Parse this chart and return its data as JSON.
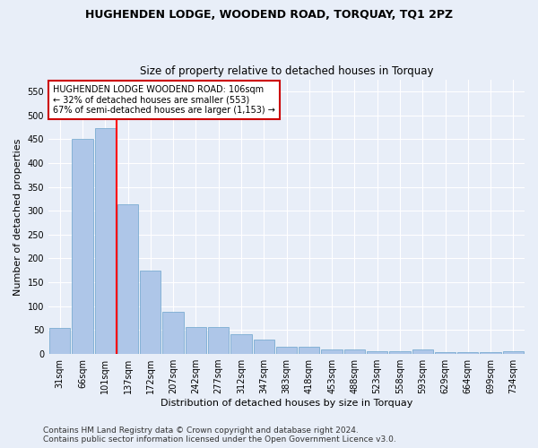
{
  "title": "HUGHENDEN LODGE, WOODEND ROAD, TORQUAY, TQ1 2PZ",
  "subtitle": "Size of property relative to detached houses in Torquay",
  "xlabel": "Distribution of detached houses by size in Torquay",
  "ylabel": "Number of detached properties",
  "categories": [
    "31sqm",
    "66sqm",
    "101sqm",
    "137sqm",
    "172sqm",
    "207sqm",
    "242sqm",
    "277sqm",
    "312sqm",
    "347sqm",
    "383sqm",
    "418sqm",
    "453sqm",
    "488sqm",
    "523sqm",
    "558sqm",
    "593sqm",
    "629sqm",
    "664sqm",
    "699sqm",
    "734sqm"
  ],
  "values": [
    54,
    450,
    472,
    313,
    175,
    88,
    57,
    57,
    41,
    30,
    15,
    15,
    10,
    10,
    6,
    6,
    9,
    4,
    4,
    4,
    5
  ],
  "bar_color": "#aec6e8",
  "bar_edge_color": "#6ba3cc",
  "red_line_x": 2,
  "annotation_text": "HUGHENDEN LODGE WOODEND ROAD: 106sqm\n← 32% of detached houses are smaller (553)\n67% of semi-detached houses are larger (1,153) →",
  "annotation_box_color": "#ffffff",
  "annotation_box_edge_color": "#cc0000",
  "ylim": [
    0,
    575
  ],
  "yticks": [
    0,
    50,
    100,
    150,
    200,
    250,
    300,
    350,
    400,
    450,
    500,
    550
  ],
  "footer1": "Contains HM Land Registry data © Crown copyright and database right 2024.",
  "footer2": "Contains public sector information licensed under the Open Government Licence v3.0.",
  "background_color": "#e8eef8",
  "plot_bg_color": "#e8eef8",
  "grid_color": "#ffffff",
  "title_fontsize": 9,
  "subtitle_fontsize": 8.5,
  "label_fontsize": 8,
  "tick_fontsize": 7,
  "footer_fontsize": 6.5
}
